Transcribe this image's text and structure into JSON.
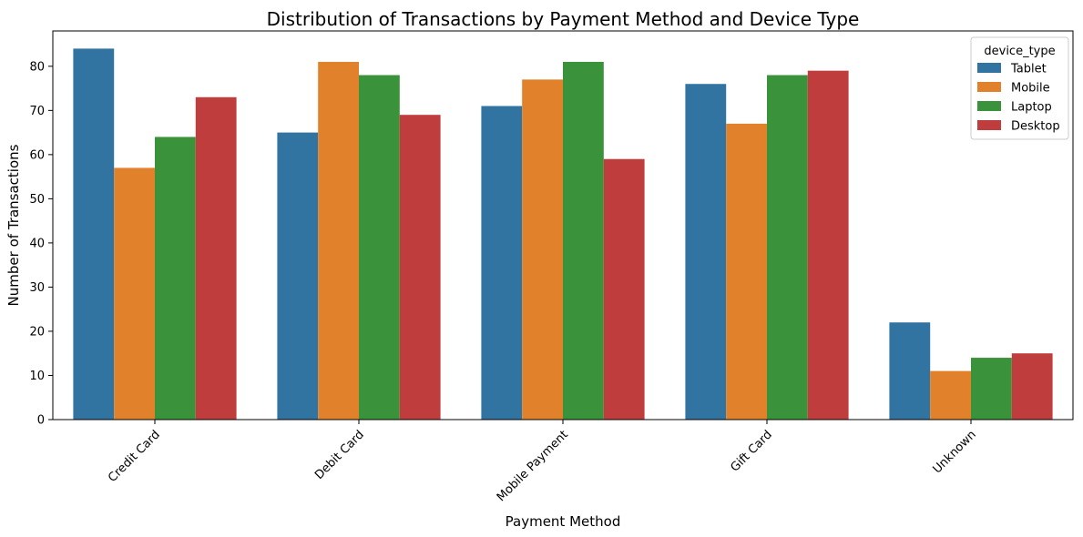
{
  "chart_data": {
    "type": "bar",
    "title": "Distribution of Transactions by Payment Method and Device Type",
    "xlabel": "Payment Method",
    "ylabel": "Number of Transactions",
    "categories": [
      "Credit Card",
      "Debit Card",
      "Mobile Payment",
      "Gift Card",
      "Unknown"
    ],
    "series": [
      {
        "name": "Tablet",
        "color": "#3274a1",
        "values": [
          84,
          65,
          71,
          76,
          22
        ]
      },
      {
        "name": "Mobile",
        "color": "#e1812c",
        "values": [
          57,
          81,
          77,
          67,
          11
        ]
      },
      {
        "name": "Laptop",
        "color": "#3a923a",
        "values": [
          64,
          78,
          81,
          78,
          14
        ]
      },
      {
        "name": "Desktop",
        "color": "#c03d3e",
        "values": [
          73,
          69,
          59,
          79,
          15
        ]
      }
    ],
    "ylim": [
      0,
      88
    ],
    "yticks": [
      0,
      10,
      20,
      30,
      40,
      50,
      60,
      70,
      80
    ],
    "grid": false,
    "legend": {
      "title": "device_type",
      "position": "top-right"
    }
  }
}
